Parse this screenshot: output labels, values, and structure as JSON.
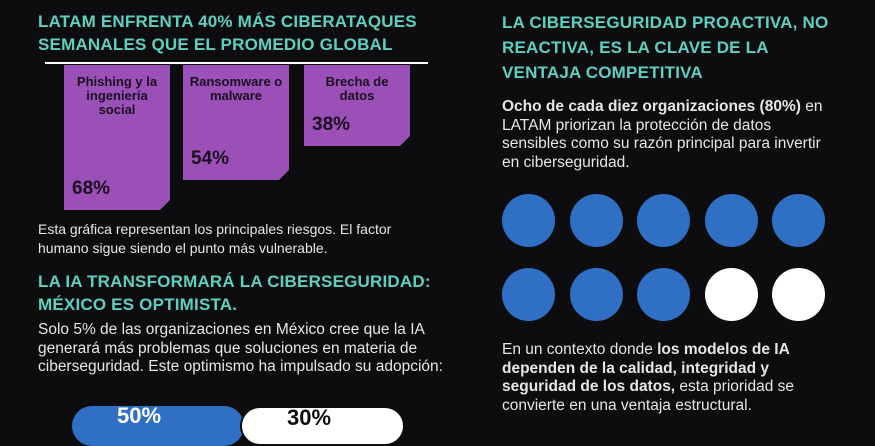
{
  "left": {
    "heading1": "LATAM ENFRENTA 40% MÁS CIBERATAQUES SEMANALES QUE EL PROMEDIO GLOBAL",
    "caption": "Esta gráfica representan los principales riesgos. El factor humano sigue siendo el punto más vulnerable.",
    "heading2": "LA IA TRANSFORMARÁ LA CIBERSEGURIDAD: MÉXICO ES OPTIMISTA.",
    "paragraph": "Solo 5% de las organizaciones en México cree que la IA generará más problemas que soluciones en materia de ciberseguridad. Este optimismo ha impulsado su adopción:",
    "pill1": "50%",
    "pill2": "30%"
  },
  "chart_data": {
    "type": "bar",
    "categories": [
      "Phishing y la ingeniería social",
      "Ransomware o malware",
      "Brecha de datos"
    ],
    "values": [
      68,
      54,
      38
    ],
    "value_labels": [
      "68%",
      "54%",
      "38%"
    ],
    "colors": {
      "bar": "#9b50b8"
    }
  },
  "right": {
    "heading": "LA CIBERSEGURIDAD PROACTIVA, NO REACTIVA, ES LA CLAVE DE LA VENTAJA COMPETITIVA",
    "stat_bold": "Ocho de cada diez organizaciones (80%)",
    "stat_rest": "en LATAM priorizan la protección de datos sensibles como su razón principal para invertir en ciberseguridad.",
    "dots_filled": 8,
    "dots_total": 10,
    "bottom_pre": "En un contexto donde ",
    "bottom_bold": "los modelos de IA dependen de la calidad, integridad y seguridad de los datos,",
    "bottom_post": " esta prioridad se convierte en una ventaja estructural."
  },
  "colors": {
    "accent": "#5fd0c0",
    "bar": "#9b50b8",
    "dot_blue": "#2f6fc4",
    "dot_white": "#ffffff",
    "background": "#0d0d0f"
  }
}
